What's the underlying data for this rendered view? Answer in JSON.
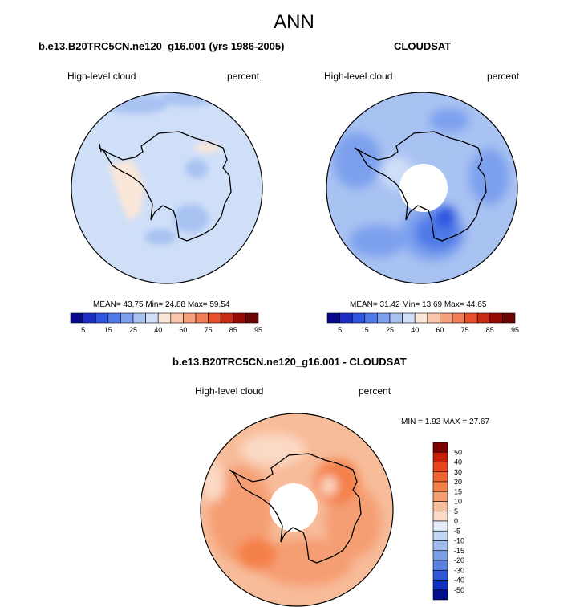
{
  "title": "ANN",
  "panels": [
    {
      "id": "model",
      "title": "b.e13.B20TRC5CN.ne120_g16.001 (yrs 1986-2005)",
      "variable": "High-level cloud",
      "units": "percent",
      "stats": "MEAN=  43.75   Min=  24.88   Max=  59.54"
    },
    {
      "id": "obs",
      "title": "CLOUDSAT",
      "variable": "High-level cloud",
      "units": "percent",
      "stats": "MEAN=  31.42   Min=  13.69   Max=  44.65"
    },
    {
      "id": "diff",
      "title": "b.e13.B20TRC5CN.ne120_g16.001 - CLOUDSAT",
      "variable": "High-level cloud",
      "units": "percent",
      "stats": "MIN =   1.92  MAX =  27.67"
    }
  ],
  "colorbar_abs": {
    "tick_labels": [
      "5",
      "15",
      "25",
      "40",
      "60",
      "75",
      "85",
      "95"
    ],
    "colors": [
      "#08088e",
      "#1b2dc4",
      "#2f56e0",
      "#4f7ae8",
      "#7da0ee",
      "#a8c2f2",
      "#cfdff8",
      "#fbe7d8",
      "#f8c6a9",
      "#f5a27c",
      "#f27c53",
      "#e8512e",
      "#c92a13",
      "#960c05",
      "#6b0404"
    ]
  },
  "colorbar_diff": {
    "tick_labels": [
      "50",
      "40",
      "30",
      "20",
      "15",
      "10",
      "5",
      "0",
      "-5",
      "-10",
      "-15",
      "-20",
      "-30",
      "-40",
      "-50"
    ],
    "colors": [
      "#7d0000",
      "#c81e0a",
      "#e8461e",
      "#f0652e",
      "#f48049",
      "#f59e73",
      "#f7bc9a",
      "#fbd9c4",
      "#e2ecfb",
      "#c3d5f5",
      "#9fbbf0",
      "#7b9ee9",
      "#5a80e3",
      "#2f55d8",
      "#1030c0",
      "#00108c"
    ]
  }
}
